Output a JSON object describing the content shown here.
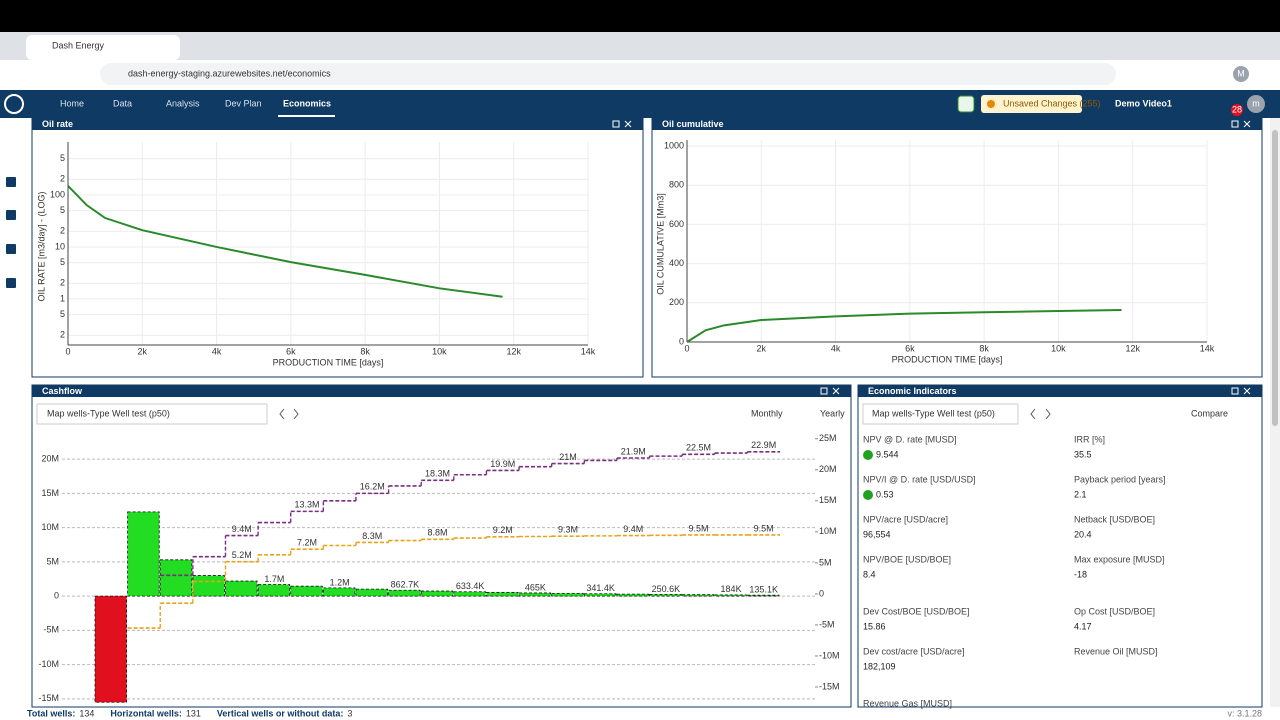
{
  "browser": {
    "tab_title": "Dash Energy",
    "url": "dash-energy-staging.azurewebsites.net/economics",
    "profile": "M"
  },
  "nav": {
    "items": [
      "Home",
      "Data",
      "Analysis",
      "Dev Plan",
      "Economics"
    ],
    "unsaved": "Unsaved Changes (255)",
    "project": "Demo Video1",
    "notifications": "28",
    "avatar": "m"
  },
  "oil_rate": {
    "type": "line",
    "title": "Oil rate",
    "xlabel": "PRODUCTION TIME [days]",
    "ylabel": "OIL RATE [m3/day] - (LOG)",
    "log_y": true,
    "grid": true,
    "xlim": [
      0,
      14000
    ],
    "xticks": [
      0,
      {
        "value": 2000,
        "label": "2k"
      },
      {
        "value": 4000,
        "label": "4k"
      },
      {
        "value": 6000,
        "label": "6k"
      },
      {
        "value": 8000,
        "label": "8k"
      },
      {
        "value": 10000,
        "label": "10k"
      },
      {
        "value": 12000,
        "label": "12k"
      },
      {
        "value": 14000,
        "label": "14k"
      }
    ],
    "ylim": [
      0.13,
      800
    ],
    "yticks": [
      {
        "value": 0.2,
        "label": "2"
      },
      {
        "value": 0.5,
        "label": "5"
      },
      1,
      {
        "value": 2,
        "label": "2"
      },
      {
        "value": 5,
        "label": "5"
      },
      10,
      {
        "value": 20,
        "label": "2"
      },
      {
        "value": 50,
        "label": "5"
      },
      100,
      {
        "value": 200,
        "label": "2"
      },
      {
        "value": 500,
        "label": "5"
      }
    ],
    "series": [
      {
        "color": "#2a8a2a",
        "x": [
          0,
          500,
          1000,
          2000,
          4000,
          6000,
          8000,
          10000,
          11700
        ],
        "values": [
          150,
          64,
          36,
          21,
          10,
          5.1,
          2.9,
          1.6,
          1.1
        ]
      }
    ]
  },
  "oil_cumulative": {
    "type": "line",
    "title": "Oil cumulative",
    "xlabel": "PRODUCTION TIME [days]",
    "ylabel": "OIL CUMULATIVE [Mm3]",
    "grid": true,
    "xlim": [
      0,
      14000
    ],
    "xticks": [
      0,
      {
        "value": 2000,
        "label": "2k"
      },
      {
        "value": 4000,
        "label": "4k"
      },
      {
        "value": 6000,
        "label": "6k"
      },
      {
        "value": 8000,
        "label": "8k"
      },
      {
        "value": 10000,
        "label": "10k"
      },
      {
        "value": 12000,
        "label": "12k"
      },
      {
        "value": 14000,
        "label": "14k"
      }
    ],
    "ylim": [
      0,
      1000
    ],
    "yticks": [
      0,
      200,
      400,
      600,
      800,
      1000
    ],
    "series": [
      {
        "color": "#2a8a2a",
        "x": [
          0,
          500,
          1000,
          2000,
          4000,
          6000,
          8000,
          10000,
          11700
        ],
        "values": [
          0,
          60,
          85,
          112,
          131,
          145,
          152,
          158,
          163
        ]
      }
    ]
  },
  "cashflow": {
    "type": "bar",
    "title": "Cashflow",
    "dropdown": "Map wells-Type Well test (p50)",
    "toggle_left": "Monthly",
    "toggle_right": "Yearly",
    "grid": true,
    "ylim": [
      -15.9,
      22.8
    ],
    "yticks": [
      {
        "value": -15,
        "label": "-15M"
      },
      {
        "value": -10,
        "label": "-10M"
      },
      {
        "value": -5,
        "label": "-5M"
      },
      0,
      {
        "value": 5,
        "label": "5M"
      },
      {
        "value": 10,
        "label": "10M"
      },
      {
        "value": 15,
        "label": "15M"
      },
      {
        "value": 20,
        "label": "20M"
      }
    ],
    "y2lim": [
      -17.9,
      24.8
    ],
    "y2ticks": [
      {
        "value": -15,
        "label": "-15M"
      },
      {
        "value": -10,
        "label": "-10M"
      },
      {
        "value": -5,
        "label": "-5M"
      },
      0,
      {
        "value": 5,
        "label": "5M"
      },
      {
        "value": 10,
        "label": "10M"
      },
      {
        "value": 15,
        "label": "15M"
      },
      {
        "value": 20,
        "label": "20M"
      },
      {
        "value": 25,
        "label": "25M"
      }
    ],
    "positive_color": "#22dd22",
    "negative_color": "#e0101e",
    "values": [
      -15.5,
      12.3,
      5.3,
      3.0,
      2.2,
      1.7,
      1.45,
      1.2,
      1.02,
      0.8627,
      0.74,
      0.6334,
      0.54,
      0.465,
      0.4,
      0.3414,
      0.29,
      0.2506,
      0.21,
      0.184,
      0.1351
    ],
    "value_labels": [
      null,
      null,
      null,
      null,
      null,
      "1.7M",
      null,
      "1.2M",
      null,
      "862.7K",
      null,
      "633.4K",
      null,
      "465K",
      null,
      "341.4K",
      null,
      "250.6K",
      null,
      "184K",
      "135.1K"
    ],
    "series": [
      {
        "color": "#7b2d82",
        "axis": "y2",
        "values": [
          null,
          null,
          3,
          6,
          9.4,
          11.5,
          13.3,
          15,
          16.2,
          17.4,
          18.3,
          19.2,
          19.9,
          20.5,
          21,
          21.5,
          21.9,
          22.2,
          22.5,
          22.7,
          22.9
        ],
        "value_labels": [
          null,
          null,
          null,
          null,
          "9.4M",
          null,
          "13.3M",
          null,
          "16.2M",
          null,
          "18.3M",
          null,
          "19.9M",
          null,
          "21M",
          null,
          "21.9M",
          null,
          "22.5M",
          null,
          "22.9M"
        ]
      },
      {
        "color": "#e8a317",
        "axis": "y2",
        "values": [
          null,
          -5.5,
          -1.5,
          2,
          5.2,
          6.3,
          7.2,
          7.8,
          8.3,
          8.6,
          8.8,
          9,
          9.2,
          9.25,
          9.3,
          9.35,
          9.4,
          9.45,
          9.5,
          9.5,
          9.5
        ],
        "value_labels": [
          null,
          null,
          null,
          null,
          "5.2M",
          null,
          "7.2M",
          null,
          "8.3M",
          null,
          "8.8M",
          null,
          "9.2M",
          null,
          "9.3M",
          null,
          "9.4M",
          null,
          "9.5M",
          null,
          "9.5M"
        ]
      }
    ]
  },
  "economic_indicators": {
    "title": "Economic Indicators",
    "dropdown": "Map wells-Type Well test (p50)",
    "compare": "Compare",
    "items": [
      {
        "label": "NPV @ D. rate [MUSD]",
        "value": 9.544,
        "color": "#22a022"
      },
      {
        "label": "IRR [%]",
        "value": 35.5
      },
      {
        "label": "NPV/I @ D. rate [USD/USD]",
        "value": 0.53,
        "color": "#22a022"
      },
      {
        "label": "Payback period [years]",
        "value": 2.1
      },
      {
        "label": "NPV/acre [USD/acre]",
        "value": "96,554"
      },
      {
        "label": "Netback [USD/BOE]",
        "value": 20.4
      },
      {
        "label": "NPV/BOE [USD/BOE]",
        "value": 8.4
      },
      {
        "label": "Max exposure [MUSD]",
        "value": -18
      },
      {
        "label": "Dev Cost/BOE [USD/BOE]",
        "value": 15.86
      },
      {
        "label": "Op Cost [USD/BOE]",
        "value": 4.17
      },
      {
        "label": "Dev cost/acre [USD/acre]",
        "value": "182,109"
      },
      {
        "label": "Revenue Oil [MUSD]"
      },
      {
        "label": "Revenue Gas [MUSD]"
      }
    ]
  },
  "footer": {
    "items": [
      {
        "label": "Total wells:",
        "value": 134
      },
      {
        "label": "Horizontal wells:",
        "value": 131
      },
      {
        "label": "Vertical wells or without data:",
        "value": 3
      }
    ],
    "version": "v: 3.1.28"
  }
}
